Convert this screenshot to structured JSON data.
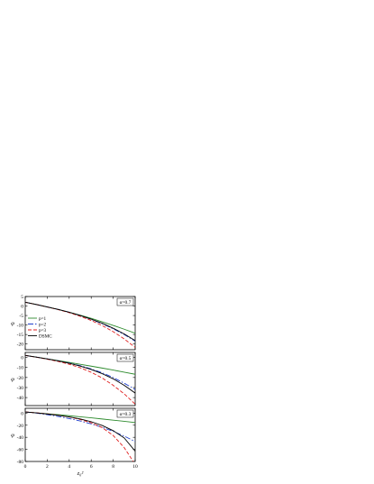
{
  "chart_data": [
    {
      "type": "line",
      "annotation": "α=0.7",
      "xlabel": "",
      "ylabel": "φ",
      "xlim": [
        0,
        10
      ],
      "ylim": [
        -23,
        5
      ],
      "xticks": [
        0,
        2,
        4,
        6,
        8,
        10
      ],
      "yticks": [
        5,
        0,
        -5,
        -10,
        -15,
        -20
      ],
      "show_xtick_labels": false,
      "legend": {
        "placement": "left",
        "entries": [
          "p=1",
          "p=2",
          "p=3",
          "DSMC"
        ]
      },
      "x": [
        0,
        1,
        2,
        3,
        4,
        5,
        6,
        7,
        8,
        9,
        10
      ],
      "series": [
        {
          "name": "p=1",
          "color": "#2e8b2e",
          "dash": "",
          "values": [
            2.0,
            0.8,
            -0.5,
            -1.8,
            -3.3,
            -4.8,
            -6.5,
            -8.3,
            -10.2,
            -12.2,
            -14.3
          ]
        },
        {
          "name": "p=2",
          "color": "#1f3fcc",
          "dash": "6 2 1.5 2",
          "values": [
            2.0,
            0.8,
            -0.5,
            -1.8,
            -3.3,
            -5.0,
            -7.0,
            -9.3,
            -12.0,
            -15.0,
            -18.5
          ]
        },
        {
          "name": "p=3",
          "color": "#e02020",
          "dash": "4 2",
          "values": [
            2.0,
            0.8,
            -0.5,
            -1.9,
            -3.5,
            -5.4,
            -7.6,
            -10.3,
            -13.5,
            -17.3,
            -21.8
          ]
        },
        {
          "name": "DSMC",
          "color": "#000000",
          "dash": "",
          "values": [
            2.0,
            0.8,
            -0.5,
            -1.8,
            -3.3,
            -5.0,
            -6.9,
            -9.1,
            -11.7,
            -14.7,
            -18.2
          ]
        }
      ]
    },
    {
      "type": "line",
      "annotation": "α=0.5",
      "xlabel": "",
      "ylabel": "φ",
      "xlim": [
        0,
        10
      ],
      "ylim": [
        -48,
        5
      ],
      "xticks": [
        0,
        2,
        4,
        6,
        8,
        10
      ],
      "yticks": [
        0,
        -10,
        -20,
        -30,
        -40
      ],
      "show_xtick_labels": false,
      "x": [
        0,
        1,
        2,
        3,
        4,
        5,
        6,
        7,
        8,
        9,
        10
      ],
      "series": [
        {
          "name": "p=1",
          "color": "#2e8b2e",
          "dash": "",
          "values": [
            2.0,
            0.3,
            -1.5,
            -3.2,
            -5.0,
            -6.8,
            -8.7,
            -10.6,
            -12.6,
            -14.7,
            -16.8
          ]
        },
        {
          "name": "p=2",
          "color": "#1f3fcc",
          "dash": "6 2 1.5 2",
          "values": [
            2.0,
            0.3,
            -1.5,
            -3.4,
            -5.6,
            -8.2,
            -11.4,
            -15.3,
            -20.1,
            -25.7,
            -32.0
          ]
        },
        {
          "name": "p=3",
          "color": "#e02020",
          "dash": "4 2",
          "values": [
            2.0,
            0.2,
            -1.8,
            -4.0,
            -6.8,
            -10.3,
            -14.8,
            -20.5,
            -27.8,
            -36.3,
            -46.5
          ]
        },
        {
          "name": "DSMC",
          "color": "#000000",
          "dash": "",
          "values": [
            2.0,
            0.3,
            -1.5,
            -3.5,
            -5.8,
            -8.6,
            -12.0,
            -16.2,
            -21.3,
            -27.8,
            -35.5
          ]
        }
      ]
    },
    {
      "type": "line",
      "annotation": "α=0.3",
      "xlabel": "z₀²",
      "ylabel": "φ",
      "xlim": [
        0,
        10
      ],
      "ylim": [
        -80,
        8
      ],
      "xticks": [
        0,
        2,
        4,
        6,
        8,
        10
      ],
      "yticks": [
        0,
        -20,
        -40,
        -60,
        -80
      ],
      "show_xtick_labels": true,
      "x": [
        0,
        1,
        2,
        3,
        4,
        5,
        6,
        7,
        8,
        9,
        10
      ],
      "series": [
        {
          "name": "p=1",
          "color": "#2e8b2e",
          "dash": "",
          "values": [
            2.0,
            0.5,
            -1.0,
            -2.6,
            -4.3,
            -6.0,
            -7.8,
            -9.7,
            -11.6,
            -13.6,
            -15.6
          ]
        },
        {
          "name": "p=2",
          "color": "#1f3fcc",
          "dash": "6 2 1.5 2",
          "values": [
            2.0,
            0.0,
            -2.5,
            -5.5,
            -9.0,
            -13.0,
            -17.8,
            -23.5,
            -30.2,
            -38.0,
            -47.0
          ]
        },
        {
          "name": "p=3",
          "color": "#e02020",
          "dash": "4 2",
          "values": [
            2.0,
            0.5,
            -1.2,
            -3.5,
            -6.5,
            -10.5,
            -16.0,
            -24.0,
            -37.0,
            -57.0,
            -85.0
          ]
        },
        {
          "name": "DSMC",
          "color": "#000000",
          "dash": "",
          "values": [
            2.0,
            0.4,
            -1.5,
            -3.7,
            -6.3,
            -9.7,
            -14.2,
            -20.4,
            -29.0,
            -41.0,
            -63.0
          ]
        }
      ]
    }
  ]
}
